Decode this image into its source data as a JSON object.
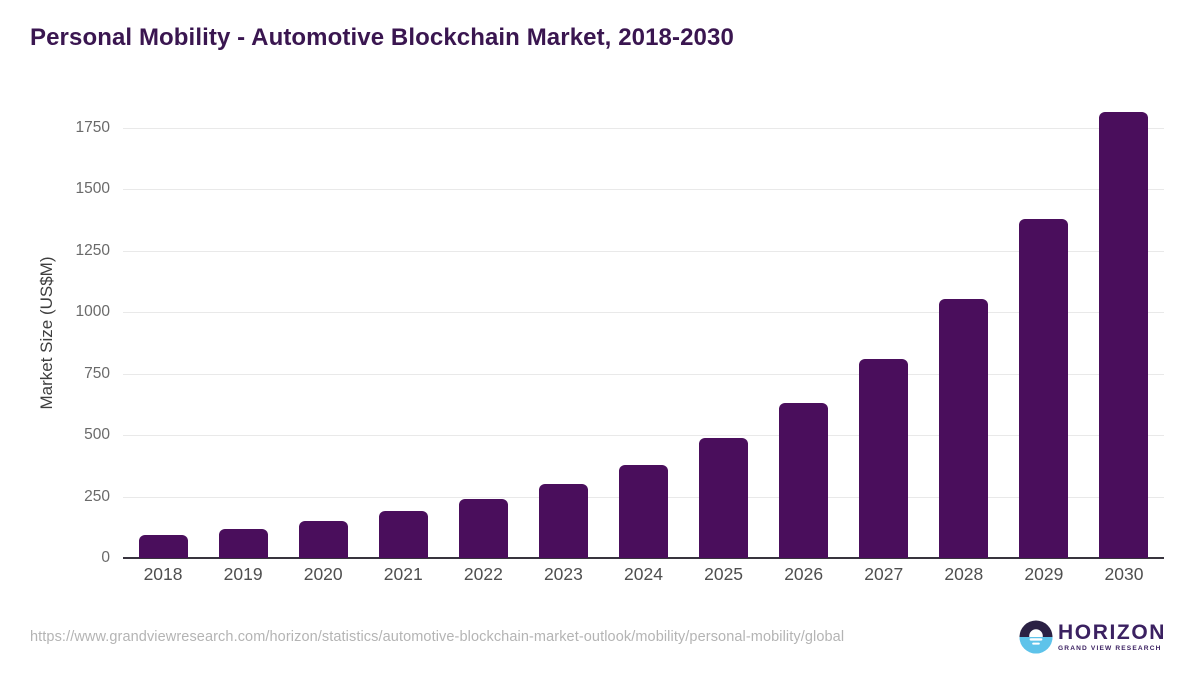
{
  "title": "Personal Mobility - Automotive Blockchain Market, 2018-2030",
  "chart_data": {
    "type": "bar",
    "title": "Personal Mobility - Automotive Blockchain Market, 2018-2030",
    "categories": [
      "2018",
      "2019",
      "2020",
      "2021",
      "2022",
      "2023",
      "2024",
      "2025",
      "2026",
      "2027",
      "2028",
      "2029",
      "2030"
    ],
    "values": [
      95,
      120,
      150,
      190,
      240,
      300,
      380,
      490,
      630,
      810,
      1055,
      1380,
      1815
    ],
    "xlabel": "",
    "ylabel": "Market Size (US$M)",
    "yticks": [
      0,
      250,
      500,
      750,
      1000,
      1250,
      1500,
      1750
    ],
    "ylim": [
      0,
      1870
    ],
    "grid": true,
    "legend": false
  },
  "footer": {
    "source_url": "https://www.grandviewresearch.com/horizon/statistics/automotive-blockchain-market-outlook/mobility/personal-mobility/global",
    "logo": {
      "name": "HORIZON",
      "subtitle": "GRAND VIEW RESEARCH"
    }
  },
  "colors": {
    "bar": "#4a0e5c",
    "title": "#3a1650",
    "grid": "#e9e9e9",
    "axis": "#38343e",
    "ytick_text": "#6a6a6a",
    "xtick_text": "#4f4f4f",
    "url_text": "#b4b4b4",
    "logo_dark": "#2b2144",
    "logo_blue": "#5ec3ea",
    "logo_text": "#3b2161"
  }
}
